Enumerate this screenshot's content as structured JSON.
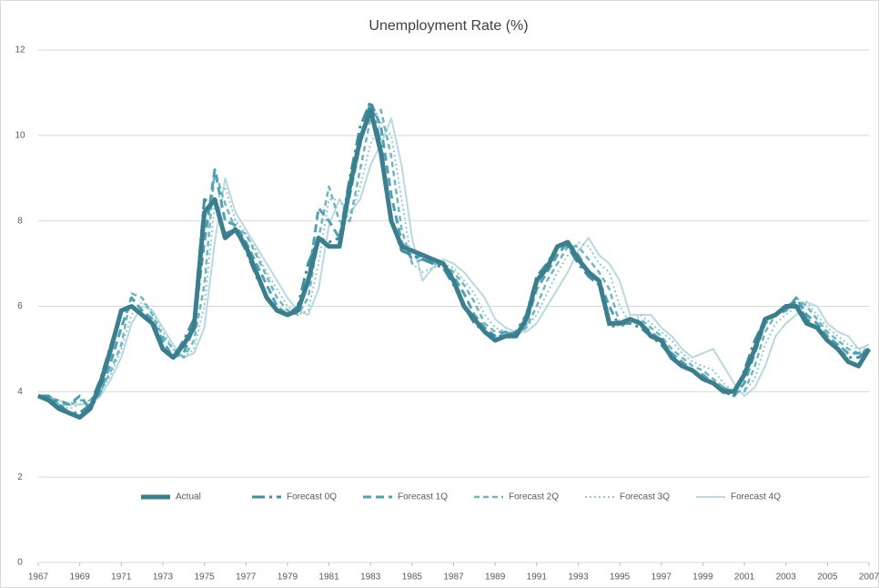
{
  "chart_data": {
    "type": "line",
    "title": "Unemployment Rate (%)",
    "x": [
      1967,
      1967.5,
      1968,
      1968.5,
      1969,
      1969.5,
      1970,
      1970.5,
      1971,
      1971.5,
      1972,
      1972.5,
      1973,
      1973.5,
      1974,
      1974.5,
      1975,
      1975.5,
      1976,
      1976.5,
      1977,
      1977.5,
      1978,
      1978.5,
      1979,
      1979.5,
      1980,
      1980.5,
      1981,
      1981.5,
      1982,
      1982.5,
      1983,
      1983.5,
      1984,
      1984.5,
      1985,
      1985.5,
      1986,
      1986.5,
      1987,
      1987.5,
      1988,
      1988.5,
      1989,
      1989.5,
      1990,
      1990.5,
      1991,
      1991.5,
      1992,
      1992.5,
      1993,
      1993.5,
      1994,
      1994.5,
      1995,
      1995.5,
      1996,
      1996.5,
      1997,
      1997.5,
      1998,
      1998.5,
      1999,
      1999.5,
      2000,
      2000.5,
      2001,
      2001.5,
      2002,
      2002.5,
      2003,
      2003.5,
      2004,
      2004.5,
      2005,
      2005.5,
      2006,
      2006.5,
      2007
    ],
    "xlim": [
      1967,
      2007
    ],
    "xticks": [
      1967,
      1969,
      1971,
      1973,
      1975,
      1977,
      1979,
      1981,
      1983,
      1985,
      1987,
      1989,
      1991,
      1993,
      1995,
      1997,
      1999,
      2001,
      2003,
      2005,
      2007
    ],
    "ylim": [
      0,
      12
    ],
    "yticks": [
      0,
      2,
      4,
      6,
      8,
      10,
      12
    ],
    "grid": true,
    "legend": "bottom",
    "series": [
      {
        "name": "Actual",
        "color": "#3b7f8f",
        "style": "thick",
        "values": [
          3.9,
          3.8,
          3.6,
          3.5,
          3.4,
          3.6,
          4.2,
          5.0,
          5.9,
          6.0,
          5.8,
          5.6,
          5.0,
          4.8,
          5.1,
          5.5,
          8.2,
          8.5,
          7.6,
          7.8,
          7.4,
          6.8,
          6.2,
          5.9,
          5.8,
          5.9,
          6.6,
          7.6,
          7.4,
          7.4,
          8.8,
          9.9,
          10.6,
          9.6,
          8.0,
          7.4,
          7.3,
          7.2,
          7.1,
          7.0,
          6.6,
          6.0,
          5.7,
          5.4,
          5.2,
          5.3,
          5.3,
          5.7,
          6.6,
          6.9,
          7.4,
          7.5,
          7.1,
          6.8,
          6.6,
          5.6,
          5.6,
          5.7,
          5.6,
          5.3,
          5.2,
          4.8,
          4.6,
          4.5,
          4.3,
          4.2,
          4.0,
          4.0,
          4.4,
          5.0,
          5.7,
          5.8,
          6.0,
          6.0,
          5.6,
          5.5,
          5.2,
          5.0,
          4.7,
          4.6,
          5.0
        ]
      },
      {
        "name": "Forecast 0Q",
        "color": "#3f8fa1",
        "style": "long-dash",
        "values": [
          3.9,
          3.9,
          3.7,
          3.5,
          3.5,
          3.7,
          4.3,
          5.1,
          5.9,
          6.0,
          5.8,
          5.6,
          5.0,
          4.8,
          5.2,
          5.7,
          8.5,
          8.4,
          7.7,
          7.8,
          7.3,
          6.7,
          6.2,
          5.9,
          5.8,
          6.0,
          7.0,
          7.6,
          7.5,
          7.6,
          9.0,
          10.2,
          10.8,
          9.8,
          8.0,
          7.3,
          7.2,
          7.1,
          7.0,
          6.9,
          6.5,
          6.0,
          5.6,
          5.4,
          5.3,
          5.3,
          5.4,
          5.8,
          6.7,
          7.0,
          7.4,
          7.4,
          7.0,
          6.7,
          6.5,
          5.5,
          5.6,
          5.6,
          5.5,
          5.3,
          5.1,
          4.8,
          4.6,
          4.5,
          4.3,
          4.2,
          4.0,
          3.9,
          4.5,
          5.2,
          5.7,
          5.8,
          6.0,
          6.1,
          5.7,
          5.5,
          5.2,
          5.0,
          4.8,
          4.8,
          5.0
        ]
      },
      {
        "name": "Forecast 1Q",
        "color": "#4fa2b3",
        "style": "dash",
        "values": [
          3.9,
          3.8,
          3.8,
          3.7,
          3.9,
          3.6,
          4.0,
          4.7,
          5.5,
          6.2,
          5.9,
          5.7,
          5.2,
          4.8,
          4.9,
          5.5,
          7.5,
          9.2,
          8.0,
          7.9,
          7.5,
          7.0,
          6.5,
          6.0,
          5.8,
          5.9,
          6.6,
          8.3,
          8.0,
          7.6,
          8.6,
          9.8,
          10.8,
          10.2,
          8.6,
          7.5,
          7.1,
          7.2,
          7.0,
          7.0,
          6.7,
          6.3,
          5.8,
          5.5,
          5.3,
          5.4,
          5.3,
          5.6,
          6.4,
          6.8,
          7.2,
          7.5,
          7.2,
          6.8,
          6.6,
          6.0,
          5.5,
          5.7,
          5.6,
          5.4,
          5.2,
          4.9,
          4.7,
          4.5,
          4.4,
          4.2,
          4.1,
          3.9,
          4.2,
          4.9,
          5.6,
          5.8,
          5.9,
          6.2,
          5.8,
          5.6,
          5.3,
          5.1,
          4.9,
          4.9,
          5.0
        ]
      },
      {
        "name": "Forecast 2Q",
        "color": "#6db6c3",
        "style": "short-dash",
        "values": [
          3.9,
          3.9,
          3.7,
          3.7,
          3.8,
          3.8,
          4.0,
          4.5,
          5.1,
          6.3,
          6.2,
          5.8,
          5.3,
          5.0,
          4.8,
          5.2,
          6.5,
          9.2,
          8.4,
          7.8,
          7.7,
          7.2,
          6.7,
          6.2,
          5.9,
          5.8,
          6.2,
          7.6,
          8.8,
          8.0,
          8.0,
          9.2,
          10.4,
          10.6,
          9.5,
          7.8,
          7.0,
          7.1,
          7.0,
          7.0,
          6.8,
          6.5,
          6.1,
          5.6,
          5.4,
          5.4,
          5.3,
          5.5,
          6.0,
          6.6,
          7.0,
          7.4,
          7.4,
          7.1,
          6.8,
          6.4,
          5.6,
          5.6,
          5.7,
          5.5,
          5.3,
          5.0,
          4.8,
          4.6,
          4.5,
          4.3,
          4.1,
          4.0,
          4.0,
          4.6,
          5.4,
          5.8,
          5.9,
          6.2,
          6.0,
          5.7,
          5.4,
          5.2,
          5.0,
          4.9,
          5.0
        ]
      },
      {
        "name": "Forecast 3Q",
        "color": "#92c9d2",
        "style": "dot",
        "values": [
          3.9,
          3.9,
          3.7,
          3.6,
          3.7,
          3.8,
          4.0,
          4.4,
          5.0,
          5.8,
          6.1,
          5.9,
          5.4,
          5.0,
          4.8,
          5.0,
          6.0,
          8.4,
          8.8,
          8.0,
          7.7,
          7.3,
          6.8,
          6.4,
          6.0,
          5.8,
          5.9,
          7.0,
          8.5,
          8.5,
          8.0,
          8.8,
          9.8,
          10.3,
          10.0,
          8.5,
          7.0,
          6.8,
          6.9,
          7.0,
          6.9,
          6.6,
          6.3,
          5.8,
          5.5,
          5.4,
          5.4,
          5.5,
          5.8,
          6.3,
          6.8,
          7.2,
          7.5,
          7.4,
          7.0,
          6.8,
          6.0,
          5.6,
          5.8,
          5.6,
          5.4,
          5.2,
          4.9,
          4.7,
          4.6,
          4.5,
          4.2,
          4.0,
          4.0,
          4.3,
          5.1,
          5.6,
          5.8,
          6.0,
          6.1,
          5.8,
          5.5,
          5.3,
          5.1,
          5.0,
          5.0
        ]
      },
      {
        "name": "Forecast 4Q",
        "color": "#b8d9e0",
        "style": "solid",
        "values": [
          3.9,
          3.9,
          3.8,
          3.7,
          3.7,
          3.7,
          3.9,
          4.3,
          4.8,
          5.6,
          6.0,
          5.9,
          5.5,
          5.1,
          4.8,
          4.9,
          5.5,
          7.5,
          9.0,
          8.2,
          7.8,
          7.4,
          7.0,
          6.6,
          6.2,
          5.9,
          5.8,
          6.4,
          7.9,
          8.5,
          8.2,
          8.5,
          9.3,
          9.8,
          10.4,
          9.3,
          7.6,
          6.6,
          6.9,
          7.1,
          7.0,
          6.8,
          6.5,
          6.2,
          5.7,
          5.5,
          5.4,
          5.4,
          5.6,
          6.0,
          6.4,
          6.8,
          7.3,
          7.6,
          7.2,
          7.0,
          6.6,
          5.8,
          5.8,
          5.8,
          5.5,
          5.3,
          5.0,
          4.8,
          4.9,
          5.0,
          4.6,
          4.2,
          3.9,
          4.1,
          4.6,
          5.3,
          5.6,
          5.8,
          6.1,
          6.0,
          5.6,
          5.4,
          5.3,
          5.0,
          5.1
        ]
      }
    ]
  }
}
